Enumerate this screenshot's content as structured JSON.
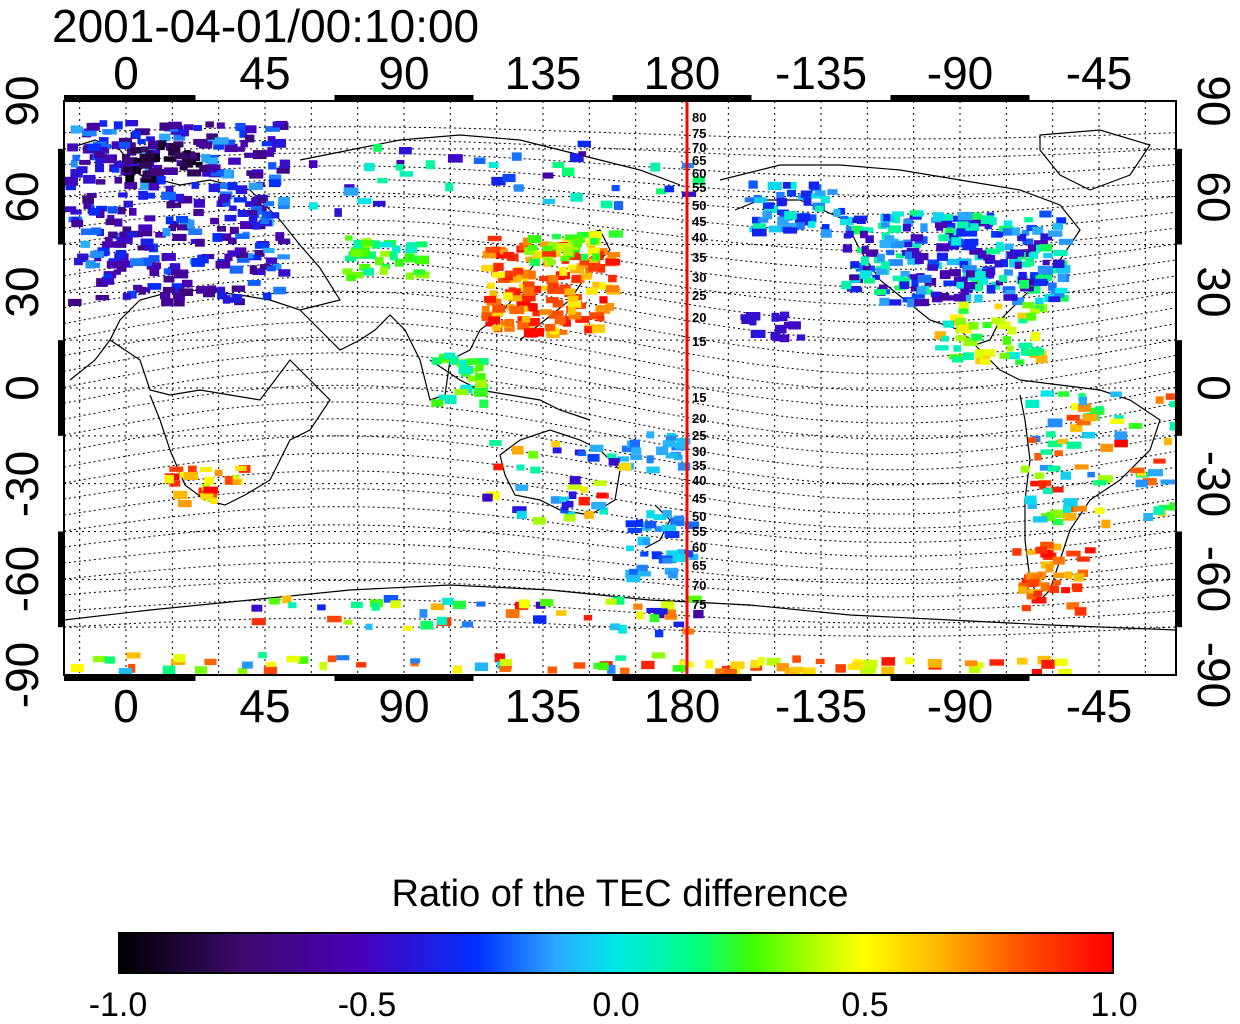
{
  "title": "2001-04-01/00:10:00",
  "lon_ticks": [
    "0",
    "45",
    "90",
    "135",
    "180",
    "-135",
    "-90",
    "-45"
  ],
  "lat_ticks": [
    "90",
    "60",
    "30",
    "0",
    "-30",
    "-60",
    "-90"
  ],
  "contour_labels_north": [
    "80",
    "75",
    "70",
    "65",
    "60",
    "55",
    "50",
    "45",
    "40",
    "35",
    "30",
    "25",
    "20",
    "15"
  ],
  "contour_labels_south": [
    "15",
    "20",
    "25",
    "30",
    "35",
    "40",
    "45",
    "50",
    "55",
    "60",
    "65",
    "70",
    "75"
  ],
  "colorbar": {
    "title": "Ratio of the TEC difference",
    "ticks": [
      "-1.0",
      "-0.5",
      "0.0",
      "0.5",
      "1.0"
    ],
    "range": [
      -1.0,
      1.0
    ]
  },
  "colors": {
    "meridian_line": "#ff0000",
    "map_frame": "#000000"
  }
}
